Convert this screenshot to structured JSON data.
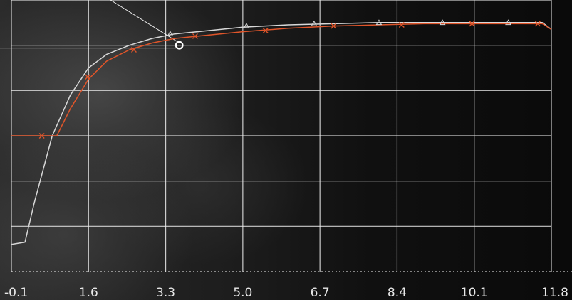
{
  "chart_data": {
    "type": "line",
    "title": "",
    "xlabel": "",
    "ylabel": "",
    "xlim": [
      -0.1,
      11.8
    ],
    "ylim": [
      0,
      1.2
    ],
    "grid": true,
    "x_ticks": [
      "-0.1",
      "1.6",
      "3.3",
      "5.0",
      "6.7",
      "8.4",
      "10.1",
      "11.8"
    ],
    "series": [
      {
        "color": "#d8d8d8",
        "marker": "triangle",
        "line": [
          [
            -0.1,
            0.12
          ],
          [
            0.2,
            0.13
          ],
          [
            0.4,
            0.3
          ],
          [
            0.8,
            0.6
          ],
          [
            1.2,
            0.78
          ],
          [
            1.6,
            0.9
          ],
          [
            2.0,
            0.96
          ],
          [
            2.5,
            1.0
          ],
          [
            3.0,
            1.03
          ],
          [
            3.5,
            1.05
          ],
          [
            4.0,
            1.06
          ],
          [
            5.0,
            1.08
          ],
          [
            6.0,
            1.09
          ],
          [
            7.0,
            1.095
          ],
          [
            8.0,
            1.1
          ],
          [
            9.0,
            1.1
          ],
          [
            10.0,
            1.1
          ],
          [
            11.0,
            1.1
          ],
          [
            11.6,
            1.1
          ],
          [
            11.8,
            1.07
          ]
        ],
        "markers": [
          [
            3.4,
            1.05
          ],
          [
            5.08,
            1.085
          ],
          [
            6.57,
            1.095
          ],
          [
            8.0,
            1.1
          ],
          [
            9.4,
            1.1
          ],
          [
            10.85,
            1.1
          ]
        ]
      },
      {
        "color": "#e0552a",
        "marker": "x",
        "line": [
          [
            -0.1,
            0.6
          ],
          [
            0.9,
            0.6
          ],
          [
            1.2,
            0.72
          ],
          [
            1.6,
            0.85
          ],
          [
            2.0,
            0.93
          ],
          [
            2.5,
            0.98
          ],
          [
            3.0,
            1.01
          ],
          [
            3.5,
            1.03
          ],
          [
            4.0,
            1.04
          ],
          [
            5.0,
            1.06
          ],
          [
            6.0,
            1.075
          ],
          [
            7.0,
            1.085
          ],
          [
            8.0,
            1.09
          ],
          [
            9.0,
            1.095
          ],
          [
            10.0,
            1.095
          ],
          [
            11.0,
            1.095
          ],
          [
            11.6,
            1.095
          ],
          [
            11.8,
            1.07
          ]
        ],
        "markers": [
          [
            0.57,
            0.6
          ],
          [
            1.58,
            0.86
          ],
          [
            2.6,
            0.98
          ],
          [
            3.95,
            1.04
          ],
          [
            5.5,
            1.065
          ],
          [
            7.0,
            1.085
          ],
          [
            8.5,
            1.09
          ],
          [
            10.05,
            1.095
          ],
          [
            11.5,
            1.095
          ]
        ]
      }
    ],
    "annotations": [
      {
        "type": "circle",
        "center": [
          3.6,
          1.0
        ],
        "radius": 0.12
      }
    ]
  }
}
